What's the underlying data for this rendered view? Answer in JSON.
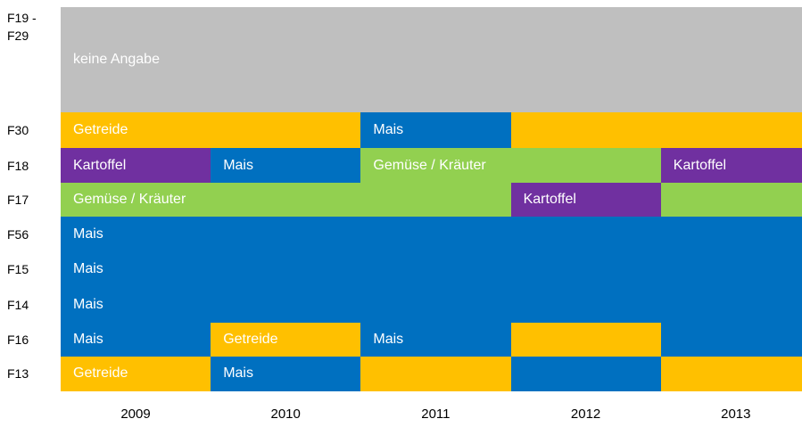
{
  "rows": [
    {
      "name": "F19 - F29",
      "blocks": [
        {
          "text": "keine Angabe",
          "color": "#bfbfbf",
          "span": 5
        }
      ]
    },
    {
      "name": "F30",
      "blocks": [
        {
          "text": "Getreide",
          "color": "#ffc000",
          "span": 2
        },
        {
          "text": "Mais",
          "color": "#0070c0",
          "span": 1
        },
        {
          "color": "#ffc000",
          "span": 2
        }
      ]
    },
    {
      "name": "F18",
      "blocks": [
        {
          "text": "Kartoffel",
          "color": "#7030a0",
          "span": 1
        },
        {
          "text": "Mais",
          "color": "#0070c0",
          "span": 1
        },
        {
          "text": "Gemüse / Kräuter",
          "color": "#92d050",
          "span": 2
        },
        {
          "text": "Kartoffel",
          "color": "#7030a0",
          "span": 1
        }
      ]
    },
    {
      "name": "F17",
      "blocks": [
        {
          "text": "Gemüse / Kräuter",
          "color": "#92d050",
          "span": 3
        },
        {
          "text": "Kartoffel",
          "color": "#7030a0",
          "span": 1
        },
        {
          "color": "#92d050",
          "span": 1
        }
      ]
    },
    {
      "name": "F56",
      "blocks": [
        {
          "text": "Mais",
          "color": "#0070c0",
          "span": 5
        }
      ]
    },
    {
      "name": "F15",
      "blocks": [
        {
          "text": "Mais",
          "color": "#0070c0",
          "span": 5
        }
      ]
    },
    {
      "name": "F14",
      "blocks": [
        {
          "text": "Mais",
          "color": "#0070c0",
          "span": 5
        }
      ]
    },
    {
      "name": "F16",
      "blocks": [
        {
          "text": "Mais",
          "color": "#0070c0",
          "span": 1
        },
        {
          "text": "Getreide",
          "color": "#ffc000",
          "span": 1
        },
        {
          "text": "Mais",
          "color": "#0070c0",
          "span": 1
        },
        {
          "color": "#ffc000",
          "span": 1
        },
        {
          "color": "#0070c0",
          "span": 1
        }
      ]
    },
    {
      "name": "F13",
      "blocks": [
        {
          "text": "Getreide",
          "color": "#ffc000",
          "span": 1
        },
        {
          "text": "Mais",
          "color": "#0070c0",
          "span": 1
        },
        {
          "color": "#ffc000",
          "span": 1
        },
        {
          "color": "#0070c0",
          "span": 1
        },
        {
          "color": "#ffc000",
          "span": 1
        }
      ]
    }
  ],
  "years": [
    "2009",
    "2010",
    "2011",
    "2012",
    "2013"
  ]
}
